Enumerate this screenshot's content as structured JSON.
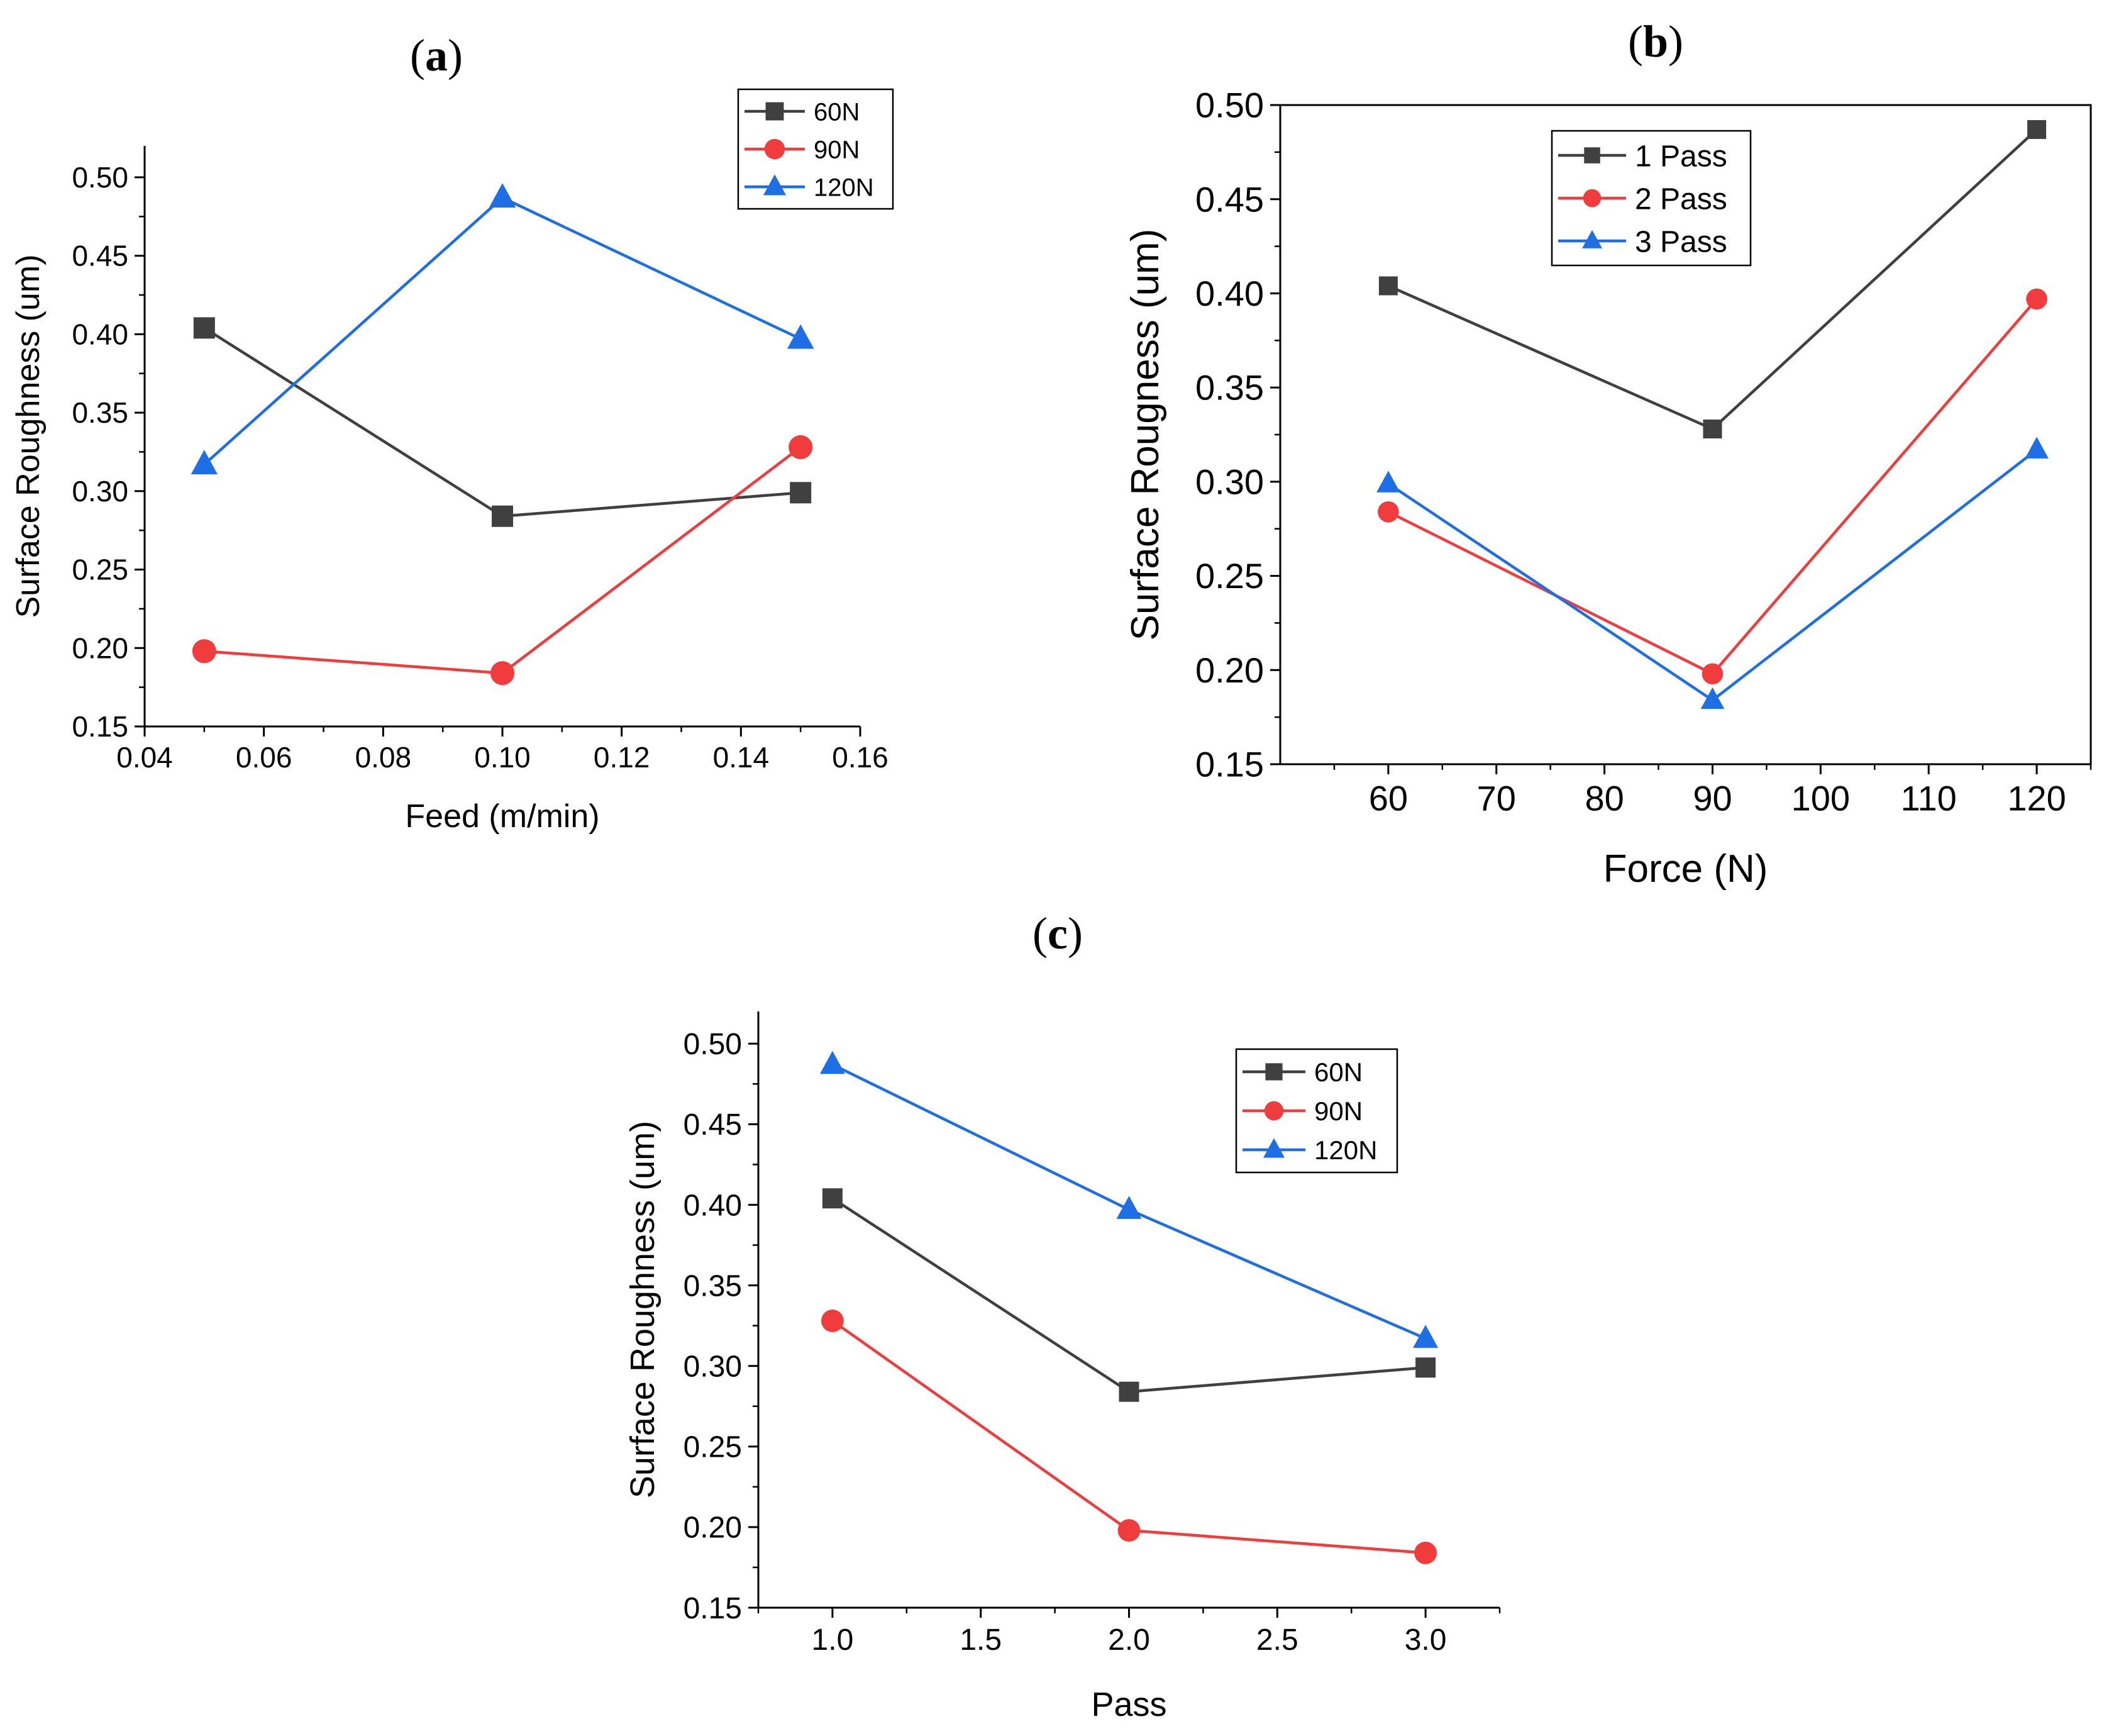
{
  "colors": {
    "black": "#404040",
    "red": "#f03c3c",
    "blue": "#1e6ee6",
    "axis": "#000000"
  },
  "chart_data": [
    {
      "id": "a",
      "panel_label": {
        "open": "(",
        "letter": "a",
        "close": ")"
      },
      "type": "line",
      "xlabel": "Feed (m/min)",
      "ylabel": "Surface Roughness (um)",
      "xlim": [
        0.04,
        0.16
      ],
      "ylim": [
        0.15,
        0.52
      ],
      "xticks": [
        "0.04",
        "0.06",
        "0.08",
        "0.10",
        "0.12",
        "0.14",
        "0.16"
      ],
      "xtick_values": [
        0.04,
        0.06,
        0.08,
        0.1,
        0.12,
        0.14,
        0.16
      ],
      "yticks": [
        "0.15",
        "0.20",
        "0.25",
        "0.30",
        "0.35",
        "0.40",
        "0.45",
        "0.50"
      ],
      "ytick_values": [
        0.15,
        0.2,
        0.25,
        0.3,
        0.35,
        0.4,
        0.45,
        0.5
      ],
      "legend_position": "top-right",
      "x": [
        0.05,
        0.1,
        0.15
      ],
      "series": [
        {
          "name": "60N",
          "color": "black",
          "marker": "square",
          "values": [
            0.404,
            0.284,
            0.299
          ]
        },
        {
          "name": "90N",
          "color": "red",
          "marker": "circle",
          "values": [
            0.198,
            0.184,
            0.328
          ]
        },
        {
          "name": "120N",
          "color": "blue",
          "marker": "triangle",
          "values": [
            0.317,
            0.487,
            0.397
          ]
        }
      ]
    },
    {
      "id": "b",
      "panel_label": {
        "open": "(",
        "letter": "b",
        "close": ")"
      },
      "type": "line",
      "xlabel": "Force (N)",
      "ylabel": "Surface Rougness (um)",
      "xlim": [
        50,
        125
      ],
      "ylim": [
        0.15,
        0.5
      ],
      "xticks": [
        "60",
        "70",
        "80",
        "90",
        "100",
        "110",
        "120"
      ],
      "xtick_values": [
        60,
        70,
        80,
        90,
        100,
        110,
        120
      ],
      "yticks": [
        "0.15",
        "0.20",
        "0.25",
        "0.30",
        "0.35",
        "0.40",
        "0.45",
        "0.50"
      ],
      "ytick_values": [
        0.15,
        0.2,
        0.25,
        0.3,
        0.35,
        0.4,
        0.45,
        0.5
      ],
      "legend_position": "top-left",
      "x": [
        60,
        90,
        120
      ],
      "series": [
        {
          "name": "1 Pass",
          "color": "black",
          "marker": "square",
          "values": [
            0.404,
            0.328,
            0.487
          ]
        },
        {
          "name": "2 Pass",
          "color": "red",
          "marker": "circle",
          "values": [
            0.284,
            0.198,
            0.397
          ]
        },
        {
          "name": "3 Pass",
          "color": "blue",
          "marker": "triangle",
          "values": [
            0.299,
            0.184,
            0.317
          ]
        }
      ]
    },
    {
      "id": "c",
      "panel_label": {
        "open": "(",
        "letter": "c",
        "close": ")"
      },
      "type": "line",
      "xlabel": "Pass",
      "ylabel": "Surface Roughness (um)",
      "xlim": [
        0.75,
        3.25
      ],
      "ylim": [
        0.15,
        0.52
      ],
      "xticks": [
        "1.0",
        "1.5",
        "2.0",
        "2.5",
        "3.0"
      ],
      "xtick_values": [
        1.0,
        1.5,
        2.0,
        2.5,
        3.0
      ],
      "yticks": [
        "0.15",
        "0.20",
        "0.25",
        "0.30",
        "0.35",
        "0.40",
        "0.45",
        "0.50"
      ],
      "ytick_values": [
        0.15,
        0.2,
        0.25,
        0.3,
        0.35,
        0.4,
        0.45,
        0.5
      ],
      "legend_position": "top-right",
      "x": [
        1.0,
        2.0,
        3.0
      ],
      "series": [
        {
          "name": "60N",
          "color": "black",
          "marker": "square",
          "values": [
            0.404,
            0.284,
            0.299
          ]
        },
        {
          "name": "90N",
          "color": "red",
          "marker": "circle",
          "values": [
            0.328,
            0.198,
            0.184
          ]
        },
        {
          "name": "120N",
          "color": "blue",
          "marker": "triangle",
          "values": [
            0.487,
            0.397,
            0.317
          ]
        }
      ]
    }
  ]
}
